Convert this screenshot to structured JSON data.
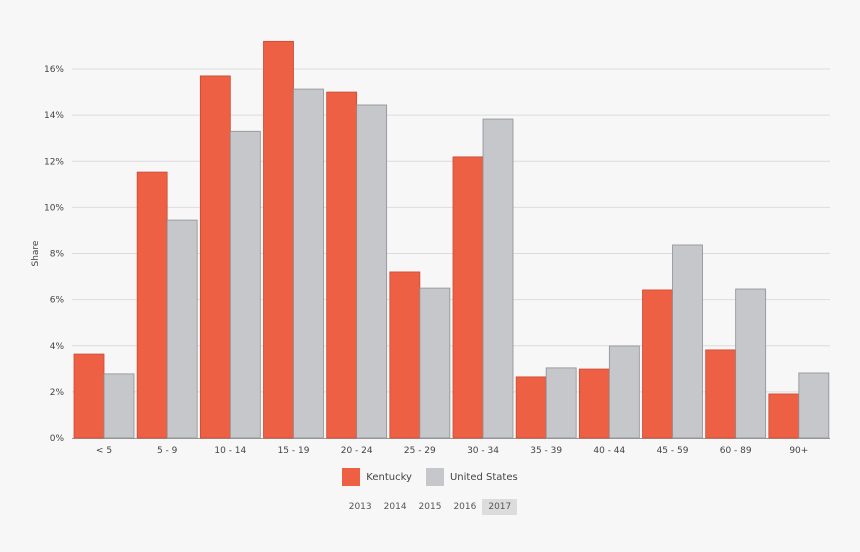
{
  "chart_data": {
    "type": "bar",
    "title": "",
    "xlabel": "",
    "ylabel": "Share",
    "ylim": [
      0,
      18
    ],
    "yticks": [
      0,
      2,
      4,
      6,
      8,
      10,
      12,
      14,
      16
    ],
    "ytick_labels": [
      "0%",
      "2%",
      "4%",
      "6%",
      "8%",
      "10%",
      "12%",
      "14%",
      "16%"
    ],
    "grid": true,
    "legend_position": "bottom",
    "categories": [
      "< 5",
      "5 - 9",
      "10 - 14",
      "15 - 19",
      "20 - 24",
      "25 - 29",
      "30 - 34",
      "35 - 39",
      "40 - 44",
      "45 - 59",
      "60 - 89",
      "90+"
    ],
    "series": [
      {
        "name": "Kentucky",
        "color": "#ee6044",
        "values": [
          3.64,
          11.53,
          15.7,
          17.2,
          15.0,
          7.2,
          12.19,
          2.65,
          2.99,
          6.42,
          3.82,
          1.91
        ]
      },
      {
        "name": "United States",
        "color": "#c6c7cb",
        "values": [
          2.78,
          9.45,
          13.3,
          15.13,
          14.44,
          6.5,
          13.83,
          3.04,
          3.99,
          8.37,
          6.46,
          2.82
        ]
      }
    ]
  },
  "years": {
    "options": [
      "2013",
      "2014",
      "2015",
      "2016",
      "2017"
    ],
    "selected": "2017"
  }
}
